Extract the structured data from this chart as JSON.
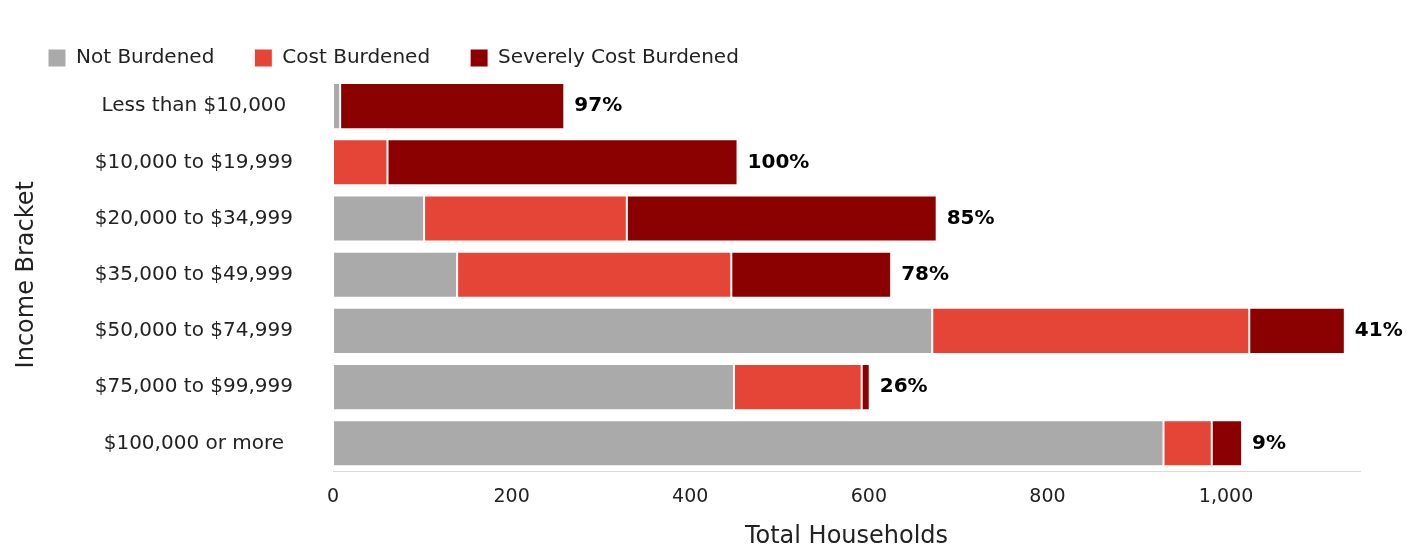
{
  "chart_data": {
    "type": "bar",
    "orientation": "horizontal",
    "stacked": true,
    "xlabel": "Total Households",
    "ylabel": "Income Bracket",
    "legend": "top left",
    "grid": false,
    "categories": [
      "Less than $10,000",
      "$10,000 to $19,999",
      "$20,000 to $34,999",
      "$35,000 to $49,999",
      "$50,000 to $74,999",
      "$75,000 to $99,999",
      "$100,000 or more"
    ],
    "series": [
      {
        "name": "Not Burdened",
        "color": "#aaaaaa",
        "values": [
          8,
          0,
          102,
          139,
          671,
          449,
          930
        ]
      },
      {
        "name": "Cost Burdened",
        "color": "#e44536",
        "values": [
          0,
          61,
          227,
          307,
          355,
          143,
          54
        ]
      },
      {
        "name": "Severely Cost Burdened",
        "color": "#8b0000",
        "values": [
          251,
          392,
          347,
          179,
          107,
          9,
          34
        ]
      }
    ],
    "xlim": [
      0,
      1150
    ],
    "xticks": [
      0,
      200,
      400,
      600,
      800,
      {
        "value": 1000,
        "label": "1,000"
      }
    ],
    "annotations": [
      {
        "text": "97%",
        "x": 259,
        "y": "Less than $10,000"
      },
      {
        "text": "100%",
        "x": 453,
        "y": "$10,000 to $19,999"
      },
      {
        "text": "85%",
        "x": 676,
        "y": "$20,000 to $34,999"
      },
      {
        "text": "78%",
        "x": 625,
        "y": "$35,000 to $49,999"
      },
      {
        "text": "41%",
        "x": 1133,
        "y": "$50,000 to $74,999"
      },
      {
        "text": "26%",
        "x": 601,
        "y": "$75,000 to $99,999"
      },
      {
        "text": "9%",
        "x": 1018,
        "y": "$100,000 or more"
      }
    ]
  }
}
